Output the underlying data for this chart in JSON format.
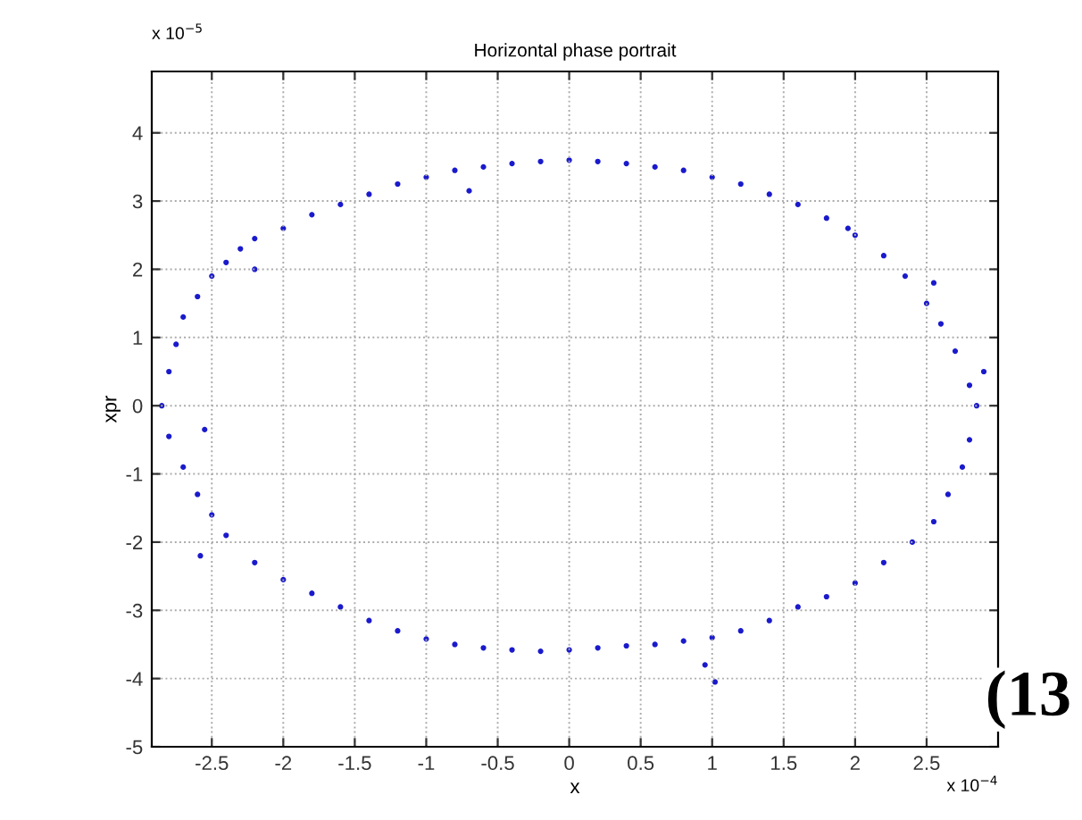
{
  "chart_data": {
    "type": "scatter",
    "title": "Horizontal phase portrait",
    "xlabel": "x",
    "ylabel": "xpr",
    "x": [
      -2.85,
      -2.8,
      -2.75,
      -2.7,
      -2.6,
      -2.5,
      -2.4,
      -2.3,
      -2.2,
      -2.0,
      -1.8,
      -1.6,
      -1.4,
      -1.2,
      -1.0,
      -0.8,
      -0.6,
      -0.4,
      -0.2,
      0,
      0.2,
      0.4,
      0.6,
      0.8,
      1.0,
      1.2,
      1.4,
      1.6,
      1.8,
      2.0,
      2.2,
      2.35,
      2.5,
      2.6,
      2.7,
      2.8,
      2.85,
      2.8,
      2.75,
      2.65,
      2.55,
      2.4,
      2.2,
      2.0,
      1.8,
      1.6,
      1.4,
      1.2,
      1.0,
      0.8,
      0.6,
      0.4,
      0.2,
      0,
      -0.2,
      -0.4,
      -0.6,
      -0.8,
      -1.0,
      -1.2,
      -1.4,
      -1.6,
      -1.8,
      -2.0,
      -2.2,
      -2.4,
      -2.5,
      -2.6,
      -2.7,
      -2.8,
      0.95,
      1.02,
      -0.7,
      -2.58,
      -2.55,
      -2.2,
      1.95,
      2.55,
      2.9
    ],
    "series": [
      {
        "color": "#1a1acc",
        "values": [
          0.0,
          0.5,
          0.9,
          1.3,
          1.6,
          1.9,
          2.1,
          2.3,
          2.45,
          2.6,
          2.8,
          2.95,
          3.1,
          3.25,
          3.35,
          3.45,
          3.5,
          3.55,
          3.58,
          3.6,
          3.58,
          3.55,
          3.5,
          3.45,
          3.35,
          3.25,
          3.1,
          2.95,
          2.75,
          2.5,
          2.2,
          1.9,
          1.5,
          1.2,
          0.8,
          0.3,
          0.0,
          -0.5,
          -0.9,
          -1.3,
          -1.7,
          -2.0,
          -2.3,
          -2.6,
          -2.8,
          -2.95,
          -3.15,
          -3.3,
          -3.4,
          -3.45,
          -3.5,
          -3.52,
          -3.55,
          -3.58,
          -3.6,
          -3.58,
          -3.55,
          -3.5,
          -3.42,
          -3.3,
          -3.15,
          -2.95,
          -2.75,
          -2.55,
          -2.3,
          -1.9,
          -1.6,
          -1.3,
          -0.9,
          -0.45,
          -3.8,
          -4.05,
          3.15,
          -2.2,
          -0.35,
          2.0,
          2.6,
          1.8,
          0.5
        ]
      }
    ],
    "xlim": [
      -2.92,
      3.0
    ],
    "ylim": [
      -5,
      4.9
    ],
    "xticks": [
      -2.5,
      -2,
      -1.5,
      -1,
      -0.5,
      0,
      0.5,
      1,
      1.5,
      2,
      2.5
    ],
    "yticks": [
      -5,
      -4,
      -3,
      -2,
      -1,
      0,
      1,
      2,
      3,
      4
    ],
    "grid": true,
    "marker": "circle",
    "annotations": [
      "x 10$^{−4}$",
      "x 10$^{−5}$",
      "(13"
    ]
  }
}
